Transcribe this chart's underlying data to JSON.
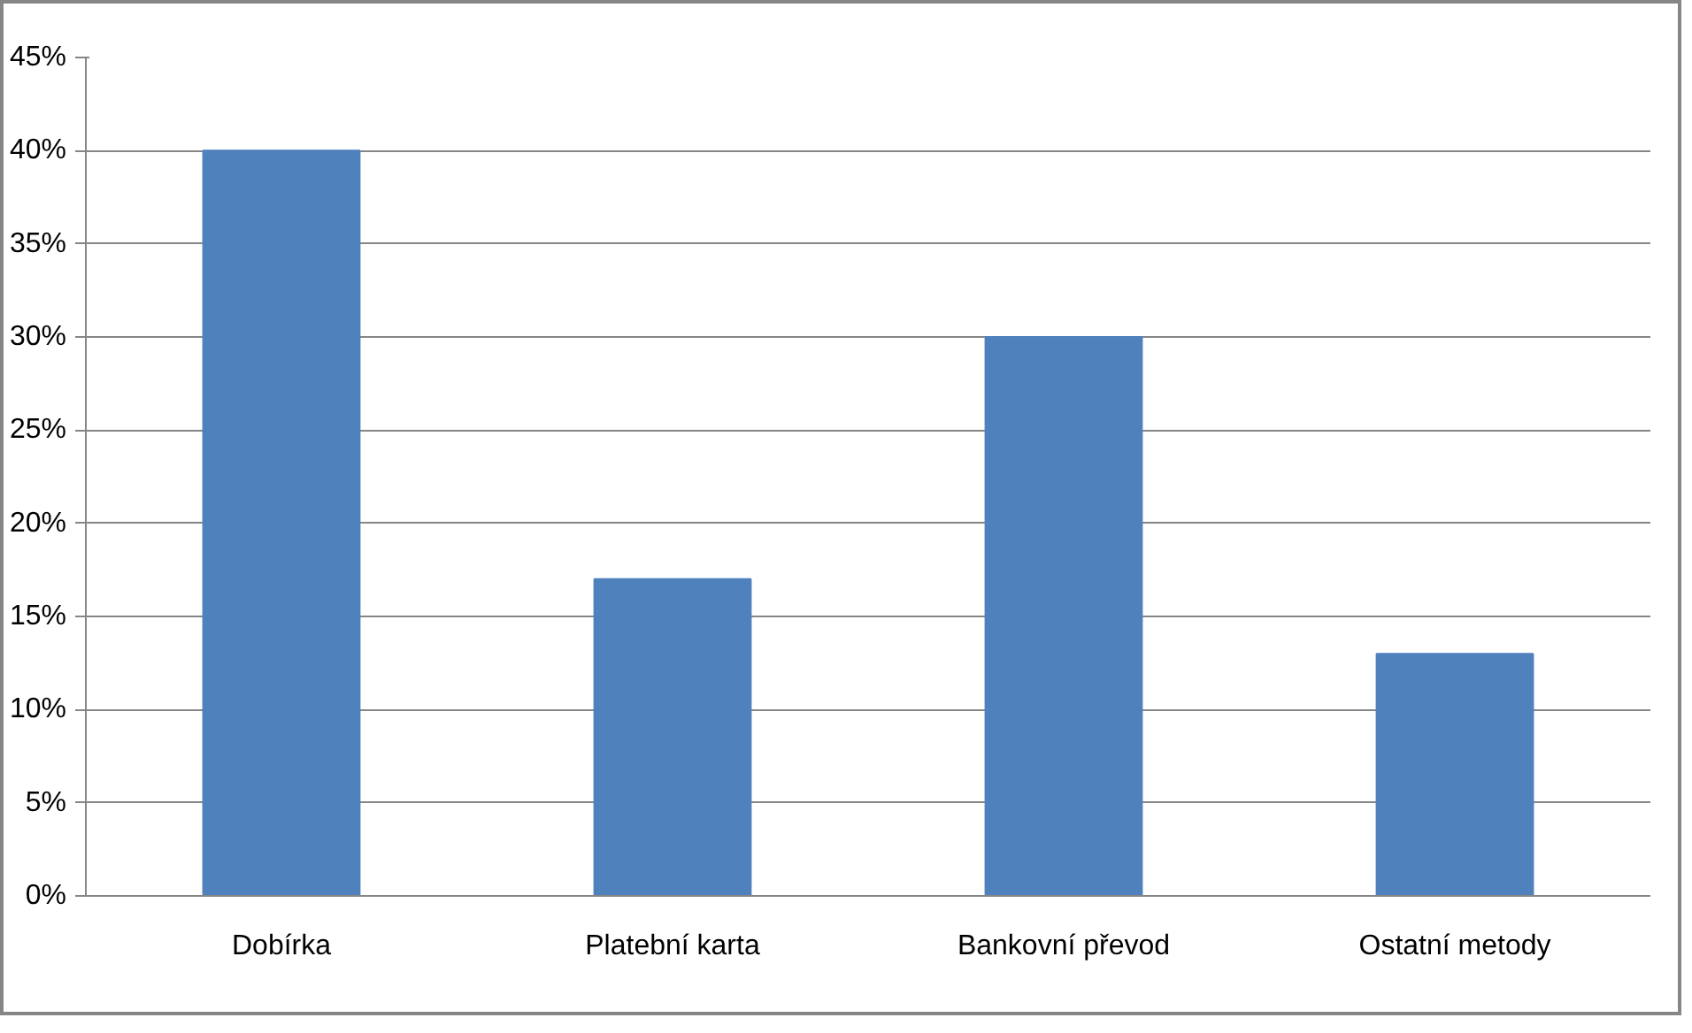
{
  "chart_data": {
    "type": "bar",
    "categories": [
      "Dobírka",
      "Platební karta",
      "Bankovní převod",
      "Ostatní metody"
    ],
    "values": [
      40,
      17,
      30,
      13
    ],
    "color": "#4f81bd",
    "ylim": [
      0,
      45
    ],
    "yticks": [
      {
        "value": 0,
        "label": "0%"
      },
      {
        "value": 5,
        "label": "5%"
      },
      {
        "value": 10,
        "label": "10%"
      },
      {
        "value": 15,
        "label": "15%"
      },
      {
        "value": 20,
        "label": "20%"
      },
      {
        "value": 25,
        "label": "25%"
      },
      {
        "value": 30,
        "label": "30%"
      },
      {
        "value": 35,
        "label": "35%"
      },
      {
        "value": 40,
        "label": "40%"
      },
      {
        "value": 45,
        "label": "45%"
      }
    ],
    "grid": "y"
  }
}
